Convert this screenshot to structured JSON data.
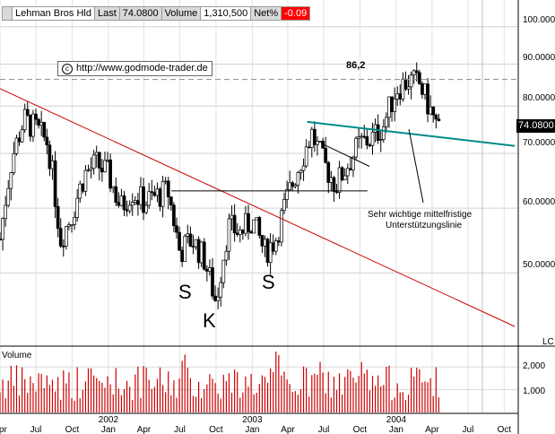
{
  "info_bar": {
    "name": "Lehman Bros Hld",
    "last_label": "Last",
    "last_value": "74.0800",
    "volume_label": "Volume",
    "volume_value": "1,310,500",
    "netpct_label": "Net%",
    "netpct_value": "-0.09"
  },
  "copyright": "http://www.godmode-trader.de",
  "chart_data": [
    {
      "type": "candlestick",
      "title": "",
      "y_scale": "log",
      "ylim": [
        41,
        107
      ],
      "y_ticks": [
        100,
        90,
        80,
        70,
        60,
        50
      ],
      "y_tick_labels": [
        "100.0000",
        "90.0000",
        "80.0000",
        "70.0000",
        "60.0000",
        "50.0000"
      ],
      "x_range": [
        "2001-04-01",
        "2004-11-01"
      ],
      "x_tick_labels": [
        "Apr",
        "Jul",
        "Oct",
        "2002\nJan",
        "Apr",
        "Jul",
        "Oct",
        "2003\nJan",
        "Apr",
        "Jul",
        "Oct",
        "2004\nJan",
        "Apr",
        "Jul",
        "Oct"
      ],
      "last_value_label": "74.0800",
      "axis_tag": "LC",
      "grid": true,
      "bars_note": "weekly close approximations",
      "close_series": [
        [
          "2001-04-01",
          55
        ],
        [
          "2001-05-01",
          69
        ],
        [
          "2001-06-01",
          77
        ],
        [
          "2001-07-01",
          75
        ],
        [
          "2001-08-01",
          72
        ],
        [
          "2001-09-01",
          55
        ],
        [
          "2001-10-01",
          59
        ],
        [
          "2001-11-01",
          66
        ],
        [
          "2001-12-01",
          68
        ],
        [
          "2002-01-01",
          66
        ],
        [
          "2002-02-01",
          60
        ],
        [
          "2002-03-01",
          63
        ],
        [
          "2002-04-01",
          61
        ],
        [
          "2002-05-01",
          62
        ],
        [
          "2002-06-01",
          63
        ],
        [
          "2002-07-01",
          53
        ],
        [
          "2002-08-01",
          55
        ],
        [
          "2002-09-01",
          52
        ],
        [
          "2002-10-01",
          46
        ],
        [
          "2002-11-01",
          57
        ],
        [
          "2002-12-01",
          56
        ],
        [
          "2003-01-01",
          58
        ],
        [
          "2003-02-01",
          53
        ],
        [
          "2003-03-01",
          55
        ],
        [
          "2003-04-01",
          62
        ],
        [
          "2003-05-01",
          68
        ],
        [
          "2003-06-01",
          74
        ],
        [
          "2003-07-01",
          68
        ],
        [
          "2003-08-01",
          64
        ],
        [
          "2003-09-01",
          68
        ],
        [
          "2003-10-01",
          72
        ],
        [
          "2003-11-01",
          73
        ],
        [
          "2003-12-01",
          76
        ],
        [
          "2004-01-01",
          84
        ],
        [
          "2004-02-01",
          86
        ],
        [
          "2004-03-01",
          85
        ],
        [
          "2004-04-01",
          78
        ],
        [
          "2004-04-20",
          74.08
        ]
      ],
      "annotations": {
        "level_label": "86,2",
        "level_value": 86.2,
        "support_text_line1": "Sehr wichtige mittelfristige",
        "support_text_line2": "Unterstützungslinie",
        "neckline_value": 63,
        "pattern_labels": [
          "S",
          "K",
          "S"
        ],
        "downtrend_line": [
          [
            "2001-04-01",
            84
          ],
          [
            "2004-10-28",
            43
          ]
        ],
        "support_line": [
          [
            "2003-05-20",
            76.5
          ],
          [
            "2004-10-28",
            71.5
          ]
        ],
        "flag_line": [
          [
            "2003-06-25",
            72
          ],
          [
            "2003-10-25",
            67.5
          ]
        ],
        "neckline": [
          [
            "2002-06-10",
            63
          ],
          [
            "2003-10-20",
            63
          ]
        ]
      }
    },
    {
      "type": "bar",
      "title": "Volume",
      "y_ticks": [
        2000,
        1000
      ],
      "y_tick_labels": [
        "2,000",
        "1,000"
      ],
      "approx_range_thousands": [
        500,
        2500
      ]
    }
  ]
}
